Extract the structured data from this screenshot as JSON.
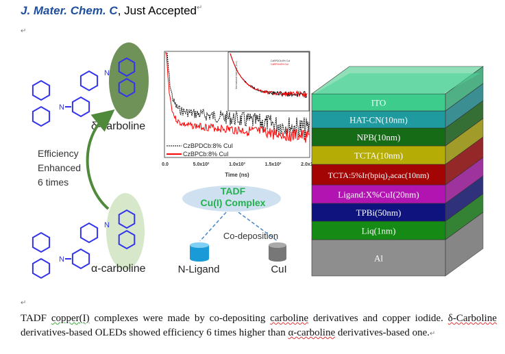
{
  "header": {
    "journal": "J. Mater. Chem. C",
    "status": ", Just Accepted"
  },
  "paragraph_mark": "↵",
  "figure": {
    "molecules": {
      "delta_label": "δ-carboline",
      "alpha_label": "α-carboline",
      "atom_n": "N",
      "arrow_text": [
        "Efficiency",
        "Enhanced",
        "6 times"
      ],
      "colors": {
        "molecule": "#3333ee",
        "delta_ellipse": "#6e9258",
        "alpha_ellipse": "#d6e8c9",
        "arrow": "#4f8a3a"
      }
    },
    "plot": {
      "x_ticks": [
        "0.0",
        "5.0x10²",
        "1.0x10³",
        "1.5x10³",
        "2.0x10³"
      ],
      "x_label": "Time (ns)",
      "legend": [
        "CzBPDCb:8% CuI",
        "CzBPCb:8% CuI"
      ],
      "series_colors": [
        "#000000",
        "#ff0000"
      ],
      "y_scale": "log",
      "inset_y_label": "Normalized Intensity (a.u.)",
      "inset_legend": [
        "CzBPDCb:8% CuI",
        "CzBPCb:8% CuI"
      ]
    },
    "complex": {
      "line1": "TADF",
      "line2": "Cu(I) Complex",
      "process": "Co-deposition",
      "source1": "N-Ligand",
      "source2": "CuI"
    },
    "device_layers": [
      {
        "label": "ITO",
        "color": "#3dcc8c"
      },
      {
        "label": "HAT-CN(10nm)",
        "color": "#1f9a9e"
      },
      {
        "label": "NPB(10nm)",
        "color": "#166b16"
      },
      {
        "label": "TCTA(10nm)",
        "color": "#b5ac06"
      },
      {
        "label": "TCTA:5%Ir(bpiq)₂acac(10nm)",
        "color": "#a30404"
      },
      {
        "label": "Ligand:X%CuI(20nm)",
        "color": "#b114b1"
      },
      {
        "label": "TPBi(50nm)",
        "color": "#0e137e"
      },
      {
        "label": "Liq(1nm)",
        "color": "#158a15"
      },
      {
        "label": "Al",
        "color": "#8e8e8e"
      }
    ]
  },
  "abstract": {
    "s1_a": "TADF ",
    "s1_b": "copper(I)",
    "s1_c": " complexes were made by co-depositing ",
    "s1_d": "carboline",
    "s1_e": " derivatives and copper iodide. ",
    "s2_a": "δ-Carboline",
    "s2_b": " derivatives-based OLEDs showed efficiency 6 times higher than ",
    "s2_c": "α-carboline",
    "s2_d": " derivatives-based one."
  }
}
